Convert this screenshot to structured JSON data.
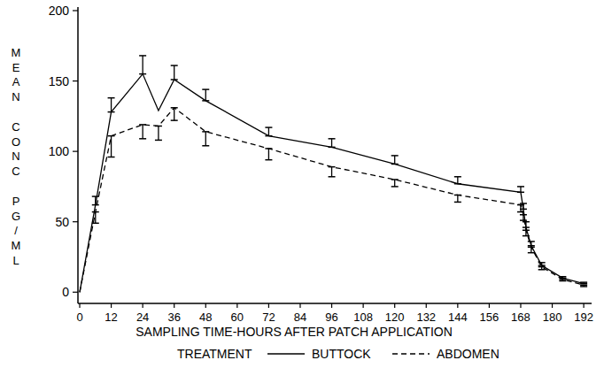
{
  "chart_data": {
    "type": "line",
    "y_label": "MEAN CONC PG/ML",
    "x_label": "SAMPLING TIME-HOURS AFTER PATCH APPLICATION",
    "legend_title": "TREATMENT",
    "legend": "bottom",
    "grid": false,
    "x": [
      0,
      6,
      12,
      24,
      30,
      36,
      48,
      72,
      96,
      120,
      144,
      168,
      169,
      170,
      172,
      176,
      184,
      192
    ],
    "xlim": [
      0,
      195
    ],
    "xticks": [
      0,
      12,
      24,
      36,
      48,
      60,
      72,
      84,
      96,
      108,
      120,
      132,
      144,
      156,
      168,
      180,
      192
    ],
    "ylim": [
      -8,
      200
    ],
    "yticks": [
      0,
      50,
      100,
      150,
      200
    ],
    "series": [
      {
        "name": "BUTTOCK",
        "color": "#000000",
        "line_style": "solid",
        "values": [
          0,
          62,
          128,
          155,
          129,
          151,
          136,
          111,
          103,
          91,
          77,
          71,
          59,
          46,
          33,
          19,
          10,
          6
        ],
        "error_plus": [
          0,
          6,
          10,
          13,
          0,
          10,
          8,
          6,
          6,
          6,
          5,
          4,
          4,
          4,
          3,
          2,
          1,
          1
        ],
        "error_minus": [
          0,
          0,
          0,
          0,
          0,
          0,
          0,
          0,
          0,
          0,
          0,
          0,
          0,
          0,
          0,
          0,
          0,
          0
        ]
      },
      {
        "name": "ABDOMEN",
        "color": "#000000",
        "line_style": "dashed",
        "values": [
          0,
          57,
          111,
          119,
          118,
          131,
          114,
          102,
          89,
          80,
          69,
          62,
          55,
          44,
          32,
          18,
          9,
          5
        ],
        "error_plus": [
          0,
          0,
          0,
          0,
          0,
          0,
          0,
          0,
          0,
          0,
          0,
          0,
          0,
          0,
          0,
          0,
          0,
          0
        ],
        "error_minus": [
          0,
          8,
          15,
          10,
          10,
          9,
          10,
          8,
          7,
          5,
          5,
          5,
          4,
          4,
          4,
          2,
          1,
          1
        ]
      }
    ]
  }
}
